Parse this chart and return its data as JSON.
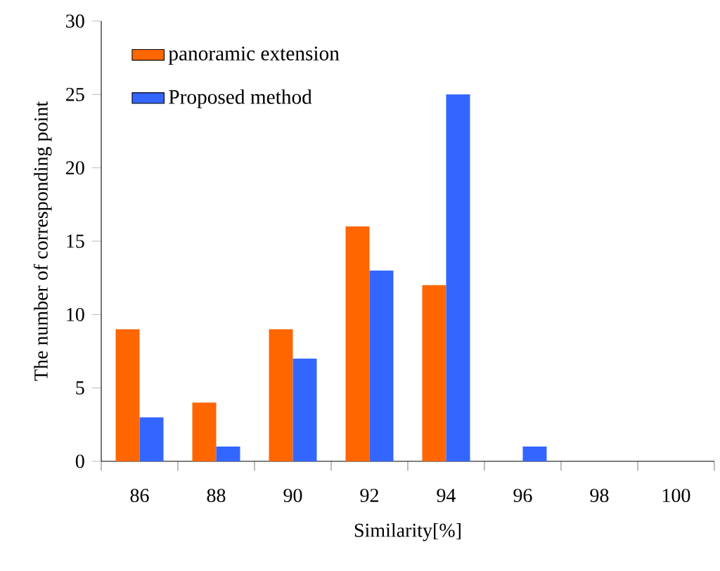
{
  "chart_data": {
    "type": "bar",
    "xlabel": "Similarity[%]",
    "ylabel": "The number of corresponding point",
    "categories": [
      "86",
      "88",
      "90",
      "92",
      "94",
      "96",
      "98",
      "100"
    ],
    "series": [
      {
        "name": "panoramic extension",
        "color": "#ff6600",
        "values": [
          9,
          4,
          9,
          16,
          12,
          0,
          0,
          0
        ]
      },
      {
        "name": "Proposed method",
        "color": "#3366ff",
        "values": [
          3,
          1,
          7,
          13,
          25,
          1,
          0,
          0
        ]
      }
    ],
    "ylim": [
      0,
      30
    ],
    "yticks": [
      0,
      5,
      10,
      15,
      20,
      25,
      30
    ],
    "grid": false,
    "legend": "top left"
  }
}
